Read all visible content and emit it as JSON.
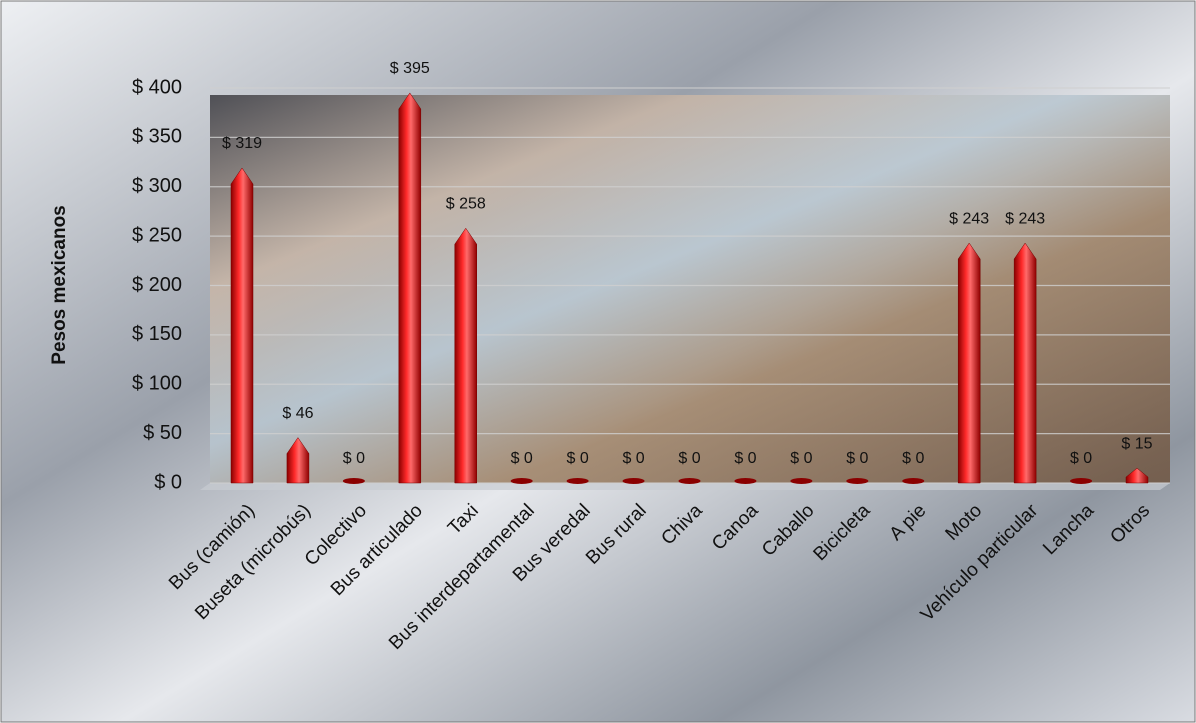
{
  "chart_data": {
    "type": "bar",
    "y_label": "Pesos mexicanos",
    "categories": [
      "Bus (camión)",
      "Buseta (microbús)",
      "Colectivo",
      "Bus articulado",
      "Taxi",
      "Bus interdepartamental",
      "Bus veredal",
      "Bus rural",
      "Chiva",
      "Canoa",
      "Caballo",
      "Bicicleta",
      "A pie",
      "Moto",
      "Vehículo particular",
      "Lancha",
      "Otros"
    ],
    "values": [
      319,
      46,
      0,
      395,
      258,
      0,
      0,
      0,
      0,
      0,
      0,
      0,
      0,
      243,
      243,
      0,
      15
    ],
    "value_labels": [
      "$ 319",
      "$ 46",
      "$ 0",
      "$ 395",
      "$ 258",
      "$ 0",
      "$ 0",
      "$ 0",
      "$ 0",
      "$ 0",
      "$ 0",
      "$ 0",
      "$ 0",
      "$ 243",
      "$ 243",
      "$ 0",
      "$ 15"
    ],
    "color": "#e00000",
    "ylim": [
      0,
      400
    ],
    "yticks": [
      {
        "value": 0,
        "label": "$ 0"
      },
      {
        "value": 50,
        "label": "$ 50"
      },
      {
        "value": 100,
        "label": "$ 100"
      },
      {
        "value": 150,
        "label": "$ 150"
      },
      {
        "value": 200,
        "label": "$ 200"
      },
      {
        "value": 250,
        "label": "$ 250"
      },
      {
        "value": 300,
        "label": "$ 300"
      },
      {
        "value": 350,
        "label": "$ 350"
      },
      {
        "value": 400,
        "label": "$ 400"
      }
    ],
    "grid": true
  }
}
